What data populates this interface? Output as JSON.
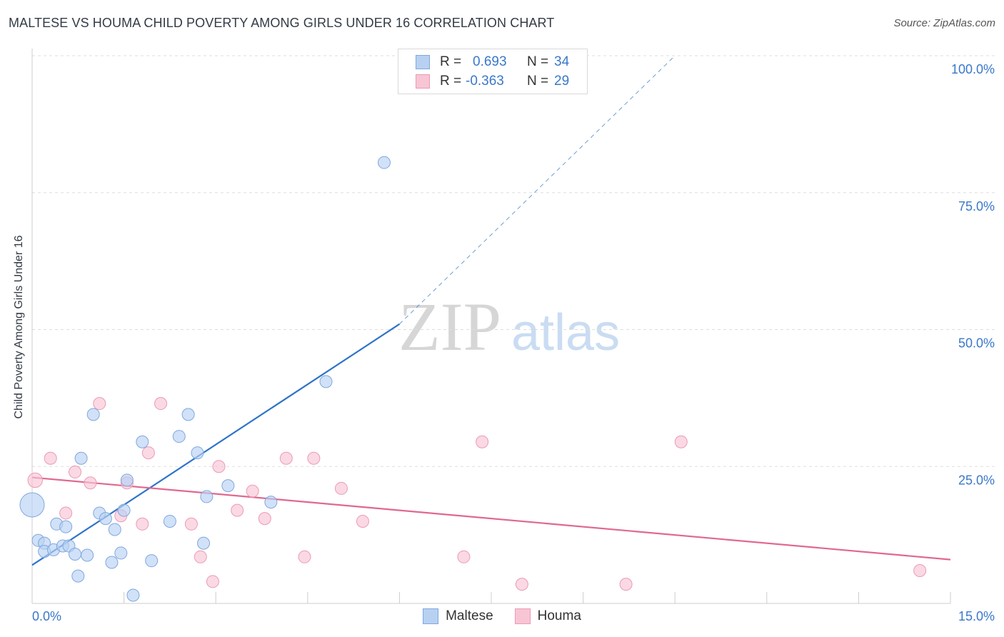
{
  "title": "MALTESE VS HOUMA CHILD POVERTY AMONG GIRLS UNDER 16 CORRELATION CHART",
  "source": "Source: ZipAtlas.com",
  "watermark": {
    "zip": "ZIP",
    "atlas": "atlas"
  },
  "legend": {
    "rows": [
      {
        "r_label": "R =",
        "r_value": "0.693",
        "n_label": "N =",
        "n_value": "34"
      },
      {
        "r_label": "R =",
        "r_value": "-0.363",
        "n_label": "N =",
        "n_value": "29"
      }
    ]
  },
  "bottom_legend": {
    "maltese": "Maltese",
    "houma": "Houma"
  },
  "colors": {
    "maltese_fill": "#b8d1f2",
    "maltese_stroke": "#7fa8df",
    "maltese_line": "#2f74c8",
    "houma_fill": "#f8c5d5",
    "houma_stroke": "#ec9ab3",
    "houma_line": "#e0688f",
    "tick_label": "#3a78c9",
    "grid": "#dddddd"
  },
  "chart_data": {
    "type": "scatter",
    "title": "MALTESE VS HOUMA CHILD POVERTY AMONG GIRLS UNDER 16 CORRELATION CHART",
    "xlabel": "",
    "ylabel": "Child Poverty Among Girls Under 16",
    "xlim": [
      0,
      15
    ],
    "ylim": [
      0,
      100
    ],
    "x_tick_labels": [
      "0.0%",
      "15.0%"
    ],
    "y_ticks": [
      25,
      50,
      75,
      100
    ],
    "y_tick_labels": [
      "25.0%",
      "50.0%",
      "75.0%",
      "100.0%"
    ],
    "grid": true,
    "legend_position": "top-center",
    "series": [
      {
        "name": "Maltese",
        "r": 0.693,
        "n": 34,
        "points": [
          [
            0.0,
            18.0
          ],
          [
            0.1,
            11.5
          ],
          [
            0.2,
            11.0
          ],
          [
            0.2,
            9.5
          ],
          [
            0.35,
            9.8
          ],
          [
            0.4,
            14.5
          ],
          [
            0.55,
            14.0
          ],
          [
            0.5,
            10.5
          ],
          [
            0.6,
            10.5
          ],
          [
            0.7,
            9.0
          ],
          [
            0.75,
            5.0
          ],
          [
            0.8,
            26.5
          ],
          [
            0.9,
            8.8
          ],
          [
            1.0,
            34.5
          ],
          [
            1.1,
            16.5
          ],
          [
            1.2,
            15.5
          ],
          [
            1.3,
            7.5
          ],
          [
            1.35,
            13.5
          ],
          [
            1.45,
            9.2
          ],
          [
            1.5,
            17.0
          ],
          [
            1.55,
            22.5
          ],
          [
            1.65,
            1.5
          ],
          [
            1.8,
            29.5
          ],
          [
            1.95,
            7.8
          ],
          [
            2.25,
            15.0
          ],
          [
            2.4,
            30.5
          ],
          [
            2.55,
            34.5
          ],
          [
            2.7,
            27.5
          ],
          [
            2.8,
            11.0
          ],
          [
            2.85,
            19.5
          ],
          [
            3.2,
            21.5
          ],
          [
            3.9,
            18.5
          ],
          [
            4.8,
            40.5
          ],
          [
            5.75,
            80.5
          ]
        ],
        "sizes": [
          20,
          10,
          10,
          10,
          10,
          10,
          10,
          10,
          10,
          10,
          10,
          10,
          10,
          10,
          10,
          10,
          10,
          10,
          10,
          10,
          10,
          10,
          10,
          10,
          10,
          10,
          10,
          10,
          10,
          10,
          10,
          10,
          10,
          10
        ],
        "trend": {
          "x": [
            0.0,
            6.0
          ],
          "y": [
            7.0,
            51.0
          ],
          "dashed_extension": {
            "x": [
              6.0,
              10.5
            ],
            "y": [
              51.0,
              100.0
            ]
          }
        }
      },
      {
        "name": "Houma",
        "r": -0.363,
        "n": 29,
        "points": [
          [
            0.05,
            22.5
          ],
          [
            0.3,
            26.5
          ],
          [
            0.55,
            16.5
          ],
          [
            0.7,
            24.0
          ],
          [
            0.95,
            22.0
          ],
          [
            1.1,
            36.5
          ],
          [
            1.45,
            16.0
          ],
          [
            1.55,
            22.0
          ],
          [
            1.8,
            14.5
          ],
          [
            1.9,
            27.5
          ],
          [
            2.1,
            36.5
          ],
          [
            2.6,
            14.5
          ],
          [
            2.75,
            8.5
          ],
          [
            2.95,
            4.0
          ],
          [
            3.05,
            25.0
          ],
          [
            3.35,
            17.0
          ],
          [
            3.6,
            20.5
          ],
          [
            3.8,
            15.5
          ],
          [
            4.15,
            26.5
          ],
          [
            4.45,
            8.5
          ],
          [
            4.6,
            26.5
          ],
          [
            5.05,
            21.0
          ],
          [
            5.4,
            15.0
          ],
          [
            7.05,
            8.5
          ],
          [
            7.35,
            29.5
          ],
          [
            8.0,
            3.5
          ],
          [
            9.7,
            3.5
          ],
          [
            10.6,
            29.5
          ],
          [
            14.5,
            6.0
          ]
        ],
        "sizes": [
          12,
          10,
          10,
          10,
          10,
          10,
          10,
          10,
          10,
          10,
          10,
          10,
          10,
          10,
          10,
          10,
          10,
          10,
          10,
          10,
          10,
          10,
          10,
          10,
          10,
          10,
          10,
          10,
          10
        ],
        "trend": {
          "x": [
            0.0,
            15.0
          ],
          "y": [
            23.0,
            8.0
          ]
        }
      }
    ]
  }
}
